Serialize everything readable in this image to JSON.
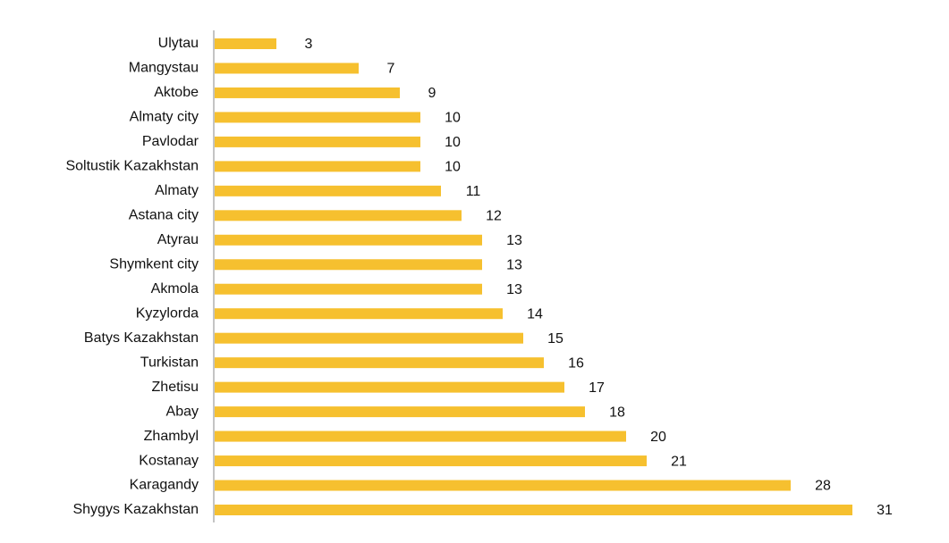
{
  "chart_data": {
    "type": "bar",
    "orientation": "horizontal",
    "title": "",
    "xlabel": "",
    "ylabel": "",
    "categories": [
      "Ulytau",
      "Mangystau",
      "Aktobe",
      "Almaty city",
      "Pavlodar",
      "Soltustik Kazakhstan",
      "Almaty",
      "Astana city",
      "Atyrau",
      "Shymkent city",
      "Akmola",
      "Kyzylorda",
      "Batys Kazakhstan",
      "Turkistan",
      "Zhetisu",
      "Abay",
      "Zhambyl",
      "Kostanay",
      "Karagandy",
      "Shygys Kazakhstan"
    ],
    "values": [
      3,
      7,
      9,
      10,
      10,
      10,
      11,
      12,
      13,
      13,
      13,
      14,
      15,
      16,
      17,
      18,
      20,
      21,
      28,
      31
    ],
    "value_labels": [
      "3",
      "7",
      "9",
      "10",
      "10",
      "10",
      "11",
      "12",
      "13",
      "13",
      "13",
      "14",
      "15",
      "16",
      "17",
      "18",
      "20",
      "21",
      "28",
      "31"
    ],
    "xlim": [
      0,
      31
    ],
    "grid": false,
    "legend": "none",
    "bar_color": "#F6C02F",
    "axis_color": "#888888",
    "text_color": "#111111"
  }
}
